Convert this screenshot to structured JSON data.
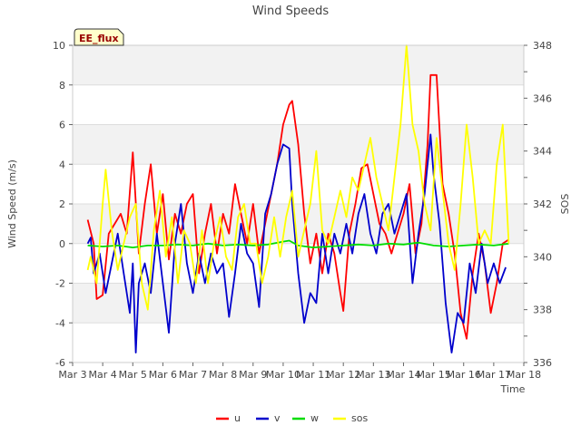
{
  "chart_data": {
    "type": "line",
    "title": "Wind Speeds",
    "xlabel": "Time",
    "ylabel": "Wind Speed (m/s)",
    "y2label": "SOS",
    "badge": "EE_flux",
    "xlim": [
      3,
      18
    ],
    "ylim": [
      -6,
      10
    ],
    "y2lim": [
      336,
      348
    ],
    "x_ticks": [
      3,
      4,
      5,
      6,
      7,
      8,
      9,
      10,
      11,
      12,
      13,
      14,
      15,
      16,
      17,
      18
    ],
    "x_tick_labels": [
      "Mar 3",
      "Mar 4",
      "Mar 5",
      "Mar 6",
      "Mar 7",
      "Mar 8",
      "Mar 9",
      "Mar 10",
      "Mar 11",
      "Mar 12",
      "Mar 13",
      "Mar 14",
      "Mar 15",
      "Mar 16",
      "Mar 17",
      "Mar 18"
    ],
    "y_ticks": [
      -6,
      -4,
      -2,
      0,
      2,
      4,
      6,
      8,
      10
    ],
    "y_tick_labels": [
      "-6",
      "-4",
      "-2",
      "0",
      "2",
      "4",
      "6",
      "8",
      "10"
    ],
    "y2_ticks": [
      336,
      338,
      340,
      342,
      344,
      346,
      348
    ],
    "y2_tick_labels": [
      "336",
      "338",
      "340",
      "342",
      "344",
      "346",
      "348"
    ],
    "series": [
      {
        "name": "u",
        "color": "#ff0000",
        "axis": "left",
        "x": [
          3.5,
          3.7,
          3.8,
          4.0,
          4.2,
          4.4,
          4.6,
          4.8,
          5.0,
          5.2,
          5.4,
          5.6,
          5.8,
          6.0,
          6.2,
          6.4,
          6.6,
          6.8,
          7.0,
          7.2,
          7.4,
          7.6,
          7.8,
          8.0,
          8.2,
          8.4,
          8.6,
          8.8,
          9.0,
          9.2,
          9.4,
          9.6,
          9.8,
          10.0,
          10.2,
          10.3,
          10.5,
          10.7,
          10.9,
          11.1,
          11.3,
          11.5,
          11.7,
          11.9,
          12.0,
          12.2,
          12.4,
          12.6,
          12.8,
          13.0,
          13.2,
          13.4,
          13.6,
          13.8,
          14.0,
          14.2,
          14.4,
          14.6,
          14.8,
          14.9,
          15.1,
          15.3,
          15.5,
          15.7,
          15.9,
          16.1,
          16.3,
          16.5,
          16.7,
          16.9,
          17.1,
          17.3,
          17.5
        ],
        "y": [
          1.2,
          0.0,
          -2.8,
          -2.6,
          0.5,
          1.0,
          1.5,
          0.5,
          4.6,
          -0.5,
          2.0,
          4.0,
          0.5,
          2.5,
          -0.8,
          1.5,
          0.5,
          2.0,
          2.5,
          -1.5,
          0.5,
          2.0,
          -0.5,
          1.5,
          0.5,
          3.0,
          1.5,
          0.0,
          2.0,
          -0.5,
          1.0,
          2.5,
          4.0,
          6.0,
          7.0,
          7.2,
          5.0,
          1.5,
          -1.0,
          0.5,
          -1.5,
          0.5,
          -0.5,
          -2.5,
          -3.4,
          0.5,
          2.0,
          3.8,
          4.0,
          2.5,
          1.0,
          0.5,
          -0.5,
          0.5,
          1.5,
          3.0,
          -0.5,
          1.0,
          5.0,
          8.5,
          8.5,
          3.0,
          1.5,
          -0.5,
          -3.5,
          -4.8,
          -1.5,
          0.5,
          -1.0,
          -3.5,
          -2.0,
          0.0,
          0.2
        ]
      },
      {
        "name": "v",
        "color": "#0000cc",
        "axis": "left",
        "x": [
          3.5,
          3.6,
          3.7,
          3.9,
          4.1,
          4.3,
          4.5,
          4.7,
          4.9,
          5.0,
          5.1,
          5.2,
          5.4,
          5.6,
          5.8,
          6.0,
          6.2,
          6.4,
          6.6,
          6.8,
          7.0,
          7.2,
          7.4,
          7.6,
          7.8,
          8.0,
          8.2,
          8.4,
          8.6,
          8.8,
          9.0,
          9.2,
          9.4,
          9.6,
          9.8,
          10.0,
          10.2,
          10.3,
          10.5,
          10.7,
          10.9,
          11.1,
          11.3,
          11.5,
          11.7,
          11.9,
          12.1,
          12.3,
          12.5,
          12.7,
          12.9,
          13.1,
          13.3,
          13.5,
          13.7,
          13.9,
          14.1,
          14.3,
          14.5,
          14.7,
          14.9,
          15.0,
          15.2,
          15.4,
          15.6,
          15.8,
          16.0,
          16.2,
          16.4,
          16.6,
          16.8,
          17.0,
          17.2,
          17.4
        ],
        "y": [
          0.0,
          0.3,
          -1.5,
          -0.5,
          -2.5,
          -1.0,
          0.5,
          -1.5,
          -3.5,
          -1.0,
          -5.5,
          -2.0,
          -1.0,
          -2.5,
          0.5,
          -2.0,
          -4.5,
          0.0,
          2.0,
          -1.0,
          -2.5,
          -0.5,
          -2.0,
          -0.5,
          -1.5,
          -1.0,
          -3.7,
          -1.5,
          1.0,
          -0.5,
          -1.0,
          -3.2,
          1.5,
          2.5,
          4.0,
          5.0,
          4.8,
          2.0,
          -1.5,
          -4.0,
          -2.5,
          -3.0,
          0.5,
          -1.5,
          0.5,
          -0.5,
          1.0,
          -0.5,
          1.5,
          2.5,
          0.5,
          -0.5,
          1.5,
          2.0,
          0.5,
          1.5,
          2.5,
          -2.0,
          0.5,
          2.5,
          5.5,
          3.5,
          1.0,
          -3.0,
          -5.5,
          -3.5,
          -4.0,
          -1.0,
          -2.5,
          0.0,
          -2.0,
          -1.0,
          -2.0,
          -1.2
        ]
      },
      {
        "name": "w",
        "color": "#00dd00",
        "axis": "left",
        "x": [
          3.5,
          4.0,
          4.5,
          5.0,
          5.5,
          6.0,
          6.5,
          7.0,
          7.5,
          8.0,
          8.5,
          9.0,
          9.5,
          10.0,
          10.2,
          10.5,
          11.0,
          11.5,
          12.0,
          12.5,
          13.0,
          13.5,
          14.0,
          14.5,
          15.0,
          15.5,
          16.0,
          16.5,
          17.0,
          17.5
        ],
        "y": [
          -0.1,
          -0.15,
          -0.1,
          -0.2,
          -0.1,
          -0.1,
          -0.05,
          -0.1,
          0.0,
          -0.1,
          -0.05,
          -0.1,
          -0.05,
          0.1,
          0.15,
          -0.1,
          -0.2,
          -0.15,
          -0.1,
          -0.05,
          -0.1,
          0.0,
          -0.05,
          0.05,
          -0.1,
          -0.15,
          -0.1,
          -0.05,
          -0.1,
          0.0
        ]
      },
      {
        "name": "sos",
        "color": "#ffff00",
        "axis": "right",
        "x": [
          3.5,
          3.6,
          3.8,
          4.0,
          4.1,
          4.3,
          4.5,
          4.7,
          4.9,
          5.1,
          5.3,
          5.5,
          5.7,
          5.9,
          6.1,
          6.3,
          6.5,
          6.7,
          6.9,
          7.1,
          7.3,
          7.5,
          7.7,
          7.9,
          8.1,
          8.3,
          8.5,
          8.7,
          8.9,
          9.1,
          9.3,
          9.5,
          9.7,
          9.9,
          10.1,
          10.3,
          10.5,
          10.7,
          10.9,
          11.1,
          11.3,
          11.5,
          11.7,
          11.9,
          12.1,
          12.3,
          12.5,
          12.7,
          12.9,
          13.1,
          13.3,
          13.5,
          13.7,
          13.9,
          14.1,
          14.3,
          14.5,
          14.7,
          14.9,
          15.1,
          15.3,
          15.5,
          15.7,
          15.9,
          16.1,
          16.3,
          16.5,
          16.7,
          16.9,
          17.1,
          17.3,
          17.5
        ],
        "y": [
          339.5,
          340.0,
          339.0,
          342.0,
          343.3,
          341.0,
          339.5,
          340.5,
          341.5,
          342.0,
          339.0,
          338.0,
          341.0,
          342.5,
          340.0,
          341.5,
          339.0,
          341.0,
          340.5,
          339.0,
          341.0,
          339.0,
          340.5,
          341.5,
          340.0,
          339.5,
          341.5,
          342.0,
          340.5,
          340.5,
          339.0,
          340.0,
          341.5,
          340.0,
          341.5,
          342.5,
          340.0,
          341.0,
          342.0,
          344.0,
          341.0,
          340.5,
          341.5,
          342.5,
          341.5,
          343.0,
          342.5,
          343.5,
          344.5,
          343.0,
          342.0,
          341.0,
          343.0,
          345.0,
          348.0,
          345.0,
          344.0,
          342.0,
          341.0,
          344.5,
          342.5,
          340.5,
          339.5,
          342.0,
          345.0,
          343.0,
          340.5,
          341.0,
          340.5,
          343.5,
          345.0,
          340.5
        ]
      }
    ],
    "legend": [
      "u",
      "v",
      "w",
      "sos"
    ],
    "legend_position": "bottom-center"
  }
}
